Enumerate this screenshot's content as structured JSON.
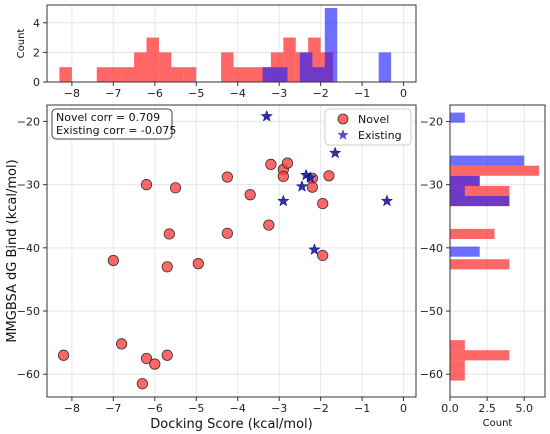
{
  "chart_data": {
    "type": "scatter",
    "xlabel": "Docking Score (kcal/mol)",
    "ylabel": "MMGBSA dG Bind (kcal/mol)",
    "xlim": [
      -8.6,
      0.3
    ],
    "ylim": [
      -63.6,
      -17.4
    ],
    "xticks": [
      -8,
      -7,
      -6,
      -5,
      -4,
      -3,
      -2,
      -1,
      0
    ],
    "yticks": [
      -60,
      -50,
      -40,
      -30,
      -20
    ],
    "grid": true,
    "legend_position": "top-right",
    "annotation_lines": [
      "Novel corr = 0.709",
      "Existing corr = -0.075"
    ],
    "colors": {
      "novel": "#ff4040",
      "existing": "#2020ff"
    },
    "series": [
      {
        "name": "Novel",
        "marker": "circle",
        "points": [
          [
            -8.2,
            -57.0
          ],
          [
            -7.0,
            -42.0
          ],
          [
            -6.8,
            -55.2
          ],
          [
            -6.3,
            -61.5
          ],
          [
            -6.2,
            -57.5
          ],
          [
            -6.2,
            -30.0
          ],
          [
            -6.0,
            -58.4
          ],
          [
            -5.7,
            -57.0
          ],
          [
            -5.7,
            -43.0
          ],
          [
            -5.65,
            -37.8
          ],
          [
            -5.5,
            -30.5
          ],
          [
            -4.95,
            -42.5
          ],
          [
            -4.25,
            -28.8
          ],
          [
            -4.25,
            -37.7
          ],
          [
            -3.7,
            -31.6
          ],
          [
            -3.25,
            -36.4
          ],
          [
            -3.2,
            -26.8
          ],
          [
            -2.9,
            -27.6
          ],
          [
            -2.9,
            -28.7
          ],
          [
            -2.8,
            -26.6
          ],
          [
            -2.2,
            -29.0
          ],
          [
            -2.2,
            -30.4
          ],
          [
            -1.95,
            -33.0
          ],
          [
            -1.95,
            -41.2
          ],
          [
            -1.8,
            -28.6
          ]
        ]
      },
      {
        "name": "Existing",
        "marker": "star",
        "points": [
          [
            -3.3,
            -19.2
          ],
          [
            -2.9,
            -32.6
          ],
          [
            -2.45,
            -30.3
          ],
          [
            -2.35,
            -28.5
          ],
          [
            -2.25,
            -28.9
          ],
          [
            -2.15,
            -40.3
          ],
          [
            -1.65,
            -25.0
          ],
          [
            -0.4,
            -32.6
          ]
        ]
      }
    ],
    "marginal_top": {
      "ylabel": "Count",
      "yticks": [
        0,
        2,
        4
      ],
      "ylim": [
        0,
        5.2
      ],
      "bin_width": 0.3,
      "novel": [
        [
          -8.15,
          1
        ],
        [
          -7.25,
          1
        ],
        [
          -6.95,
          1
        ],
        [
          -6.65,
          1
        ],
        [
          -6.35,
          2
        ],
        [
          -6.05,
          3
        ],
        [
          -5.75,
          2
        ],
        [
          -5.45,
          1
        ],
        [
          -5.15,
          1
        ],
        [
          -4.25,
          2
        ],
        [
          -3.95,
          1
        ],
        [
          -3.65,
          1
        ],
        [
          -3.35,
          1
        ],
        [
          -3.05,
          2
        ],
        [
          -2.75,
          3
        ],
        [
          -2.45,
          2
        ],
        [
          -2.15,
          3
        ],
        [
          -1.85,
          2
        ]
      ],
      "existing": [
        [
          -3.25,
          1
        ],
        [
          -2.95,
          1
        ],
        [
          -2.35,
          2
        ],
        [
          -2.05,
          1
        ],
        [
          -1.75,
          5
        ],
        [
          -0.45,
          2
        ]
      ]
    },
    "marginal_right": {
      "xlabel": "Count",
      "xticks": [
        0.0,
        2.5,
        5.0
      ],
      "xtick_labels": [
        "0.0",
        "2.5",
        "5.0"
      ],
      "xlim": [
        0,
        6.4
      ],
      "bin_height": 1.6,
      "novel": [
        [
          -60.2,
          1
        ],
        [
          -58.6,
          1
        ],
        [
          -57.0,
          4
        ],
        [
          -55.4,
          1
        ],
        [
          -42.6,
          4
        ],
        [
          -37.8,
          3
        ],
        [
          -32.6,
          4
        ],
        [
          -31.0,
          4
        ],
        [
          -29.4,
          2
        ],
        [
          -27.8,
          6
        ]
      ],
      "existing": [
        [
          -19.4,
          1
        ],
        [
          -26.2,
          5
        ],
        [
          -29.4,
          2
        ],
        [
          -31.0,
          1
        ],
        [
          -32.6,
          4
        ],
        [
          -40.6,
          2
        ]
      ]
    }
  }
}
